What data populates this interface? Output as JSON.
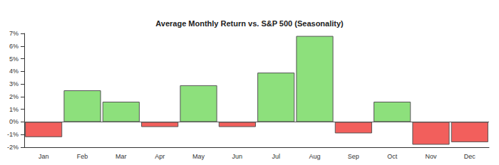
{
  "chart_data": {
    "type": "bar",
    "title": "Average Monthly Return vs. S&P 500 (Seasonality)",
    "categories": [
      "Jan",
      "Feb",
      "Mar",
      "Apr",
      "May",
      "Jun",
      "Jul",
      "Aug",
      "Sep",
      "Oct",
      "Nov",
      "Dec"
    ],
    "values": [
      -1.2,
      2.5,
      1.6,
      -0.4,
      2.9,
      -0.4,
      3.9,
      6.8,
      -0.9,
      1.6,
      -1.8,
      -1.6
    ],
    "colors": [
      "#f25f5c",
      "#8de07c",
      "#8de07c",
      "#f25f5c",
      "#8de07c",
      "#f25f5c",
      "#8de07c",
      "#8de07c",
      "#f25f5c",
      "#8de07c",
      "#f25f5c",
      "#f25f5c"
    ],
    "ylim": [
      -2,
      7
    ],
    "yticks": [
      {
        "value": -2,
        "label": "-2%"
      },
      {
        "value": -1,
        "label": "-1%"
      },
      {
        "value": 0,
        "label": "0%"
      },
      {
        "value": 1,
        "label": "1%"
      },
      {
        "value": 2,
        "label": "2%"
      },
      {
        "value": 3,
        "label": "3%"
      },
      {
        "value": 4,
        "label": "4%"
      },
      {
        "value": 5,
        "label": "5%"
      },
      {
        "value": 6,
        "label": "6%"
      },
      {
        "value": 7,
        "label": "7%"
      }
    ],
    "grid": false
  }
}
